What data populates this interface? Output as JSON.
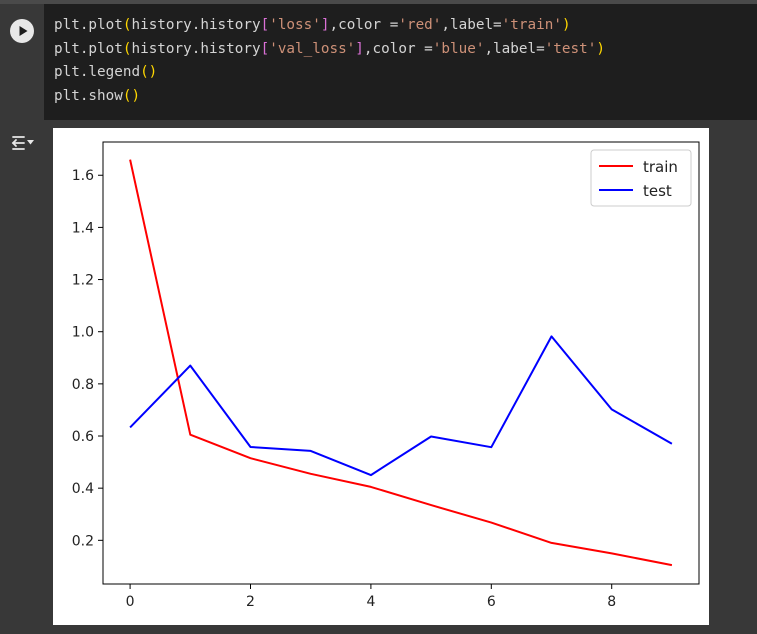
{
  "cell": {
    "code_lines": [
      [
        {
          "t": "plt.plot"
        },
        {
          "t": "(",
          "c": "br1"
        },
        {
          "t": "history.history"
        },
        {
          "t": "[",
          "c": "br2"
        },
        {
          "t": "'loss'",
          "c": "str"
        },
        {
          "t": "]",
          "c": "br2"
        },
        {
          "t": ",color ="
        },
        {
          "t": "'red'",
          "c": "str"
        },
        {
          "t": ",label="
        },
        {
          "t": "'train'",
          "c": "str"
        },
        {
          "t": ")",
          "c": "br1"
        }
      ],
      [
        {
          "t": "plt.plot"
        },
        {
          "t": "(",
          "c": "br1"
        },
        {
          "t": "history.history"
        },
        {
          "t": "[",
          "c": "br2"
        },
        {
          "t": "'val_loss'",
          "c": "str"
        },
        {
          "t": "]",
          "c": "br2"
        },
        {
          "t": ",color ="
        },
        {
          "t": "'blue'",
          "c": "str"
        },
        {
          "t": ",label="
        },
        {
          "t": "'test'",
          "c": "str"
        },
        {
          "t": ")",
          "c": "br1"
        }
      ],
      [
        {
          "t": "plt.legend"
        },
        {
          "t": "()",
          "c": "br1"
        }
      ],
      [
        {
          "t": "plt.show"
        },
        {
          "t": "()",
          "c": "br1"
        }
      ]
    ]
  },
  "icons": {
    "run": "play-circle-icon",
    "output_toggle": "output-toggle-icon"
  },
  "chart_data": {
    "type": "line",
    "x": [
      0,
      1,
      2,
      3,
      4,
      5,
      6,
      7,
      8,
      9
    ],
    "series": [
      {
        "name": "train",
        "color": "#ff0000",
        "values": [
          1.66,
          0.605,
          0.515,
          0.455,
          0.405,
          0.335,
          0.268,
          0.19,
          0.15,
          0.105
        ]
      },
      {
        "name": "test",
        "color": "#0000ff",
        "values": [
          0.633,
          0.87,
          0.558,
          0.543,
          0.45,
          0.598,
          0.557,
          0.982,
          0.702,
          0.57
        ]
      }
    ],
    "xticks": [
      "0",
      "2",
      "4",
      "6",
      "8"
    ],
    "yticks": [
      "0.2",
      "0.4",
      "0.6",
      "0.8",
      "1.0",
      "1.2",
      "1.4",
      "1.6"
    ],
    "xlim": [
      -0.45,
      9.45
    ],
    "ylim": [
      0.0325,
      1.7275
    ],
    "legend_position": "upper right",
    "grid": false
  }
}
